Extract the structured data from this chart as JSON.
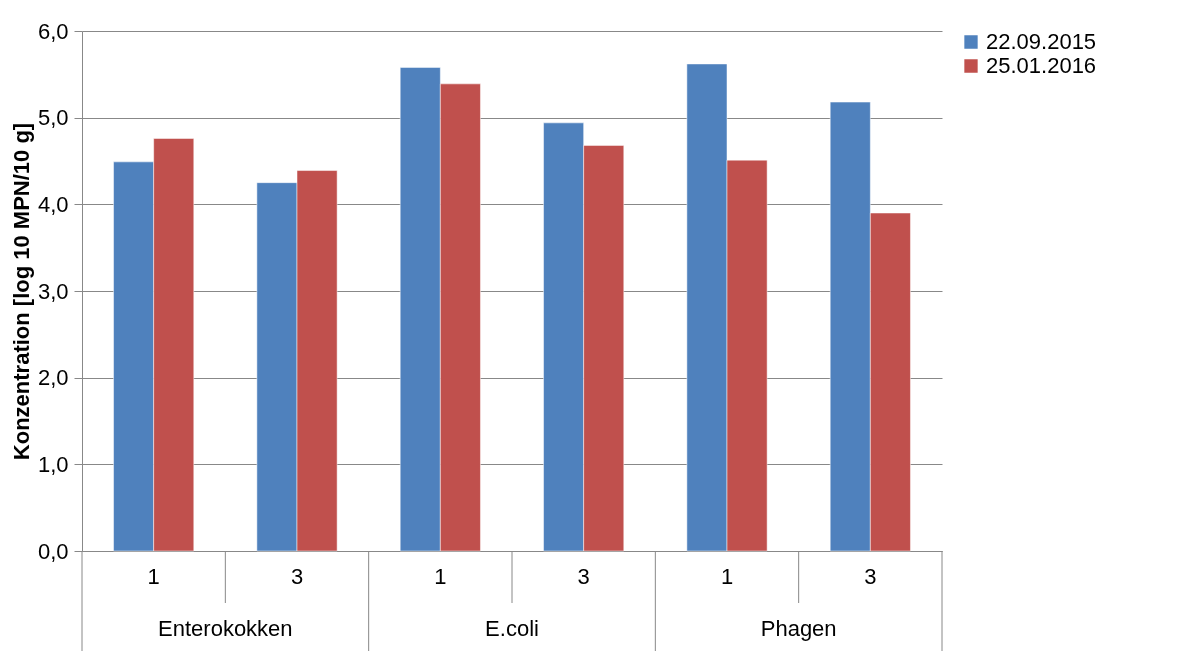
{
  "chart_data": {
    "type": "bar",
    "ylabel": "Konzentration [log 10 MPN/10 g]",
    "categories": [
      "1",
      "3",
      "1",
      "3",
      "1",
      "3"
    ],
    "annotations": [
      "Enterokokken",
      "E.coli",
      "Phagen"
    ],
    "series": [
      {
        "name": "22.09.2015",
        "color": "#4f81bd",
        "values": [
          4.49,
          4.25,
          5.58,
          4.94,
          5.62,
          5.18
        ]
      },
      {
        "name": "25.01.2016",
        "color": "#c0504d",
        "values": [
          4.76,
          4.39,
          5.39,
          4.68,
          4.51,
          3.9
        ]
      }
    ],
    "ylim": [
      0,
      6
    ],
    "yticks": [
      {
        "value": 0,
        "label": "0,0"
      },
      {
        "value": 1,
        "label": "1,0"
      },
      {
        "value": 2,
        "label": "2,0"
      },
      {
        "value": 3,
        "label": "3,0"
      },
      {
        "value": 4,
        "label": "4,0"
      },
      {
        "value": 5,
        "label": "5,0"
      },
      {
        "value": 6,
        "label": "6,0"
      }
    ],
    "grid": "y",
    "legend": "right"
  }
}
